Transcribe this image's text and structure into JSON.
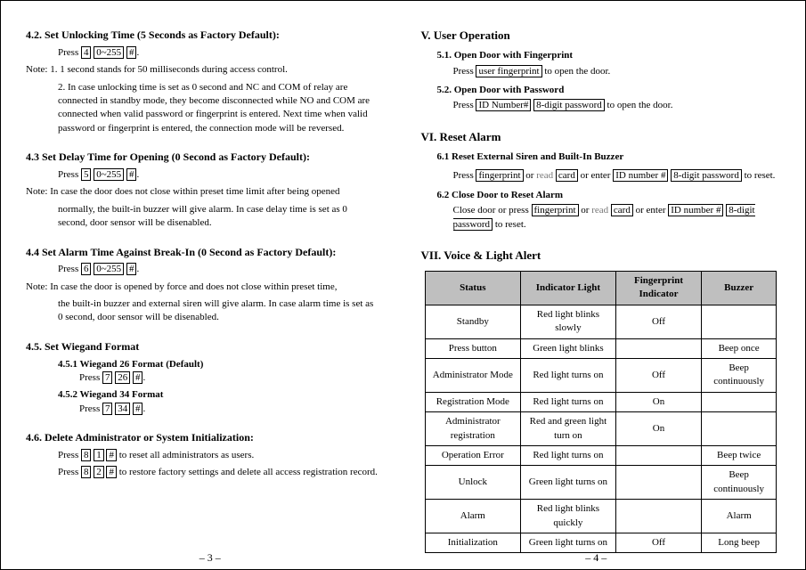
{
  "left": {
    "s42": {
      "heading": "4.2. Set Unlocking Time (5 Seconds as Factory Default):",
      "press_pre": "Press ",
      "k4": "4",
      "range": "0~255",
      "hash": "#",
      "dot": ".",
      "note1": "Note: 1. 1 second stands for 50 milliseconds during access control.",
      "note2": "2. In case unlocking time is set as 0 second and NC and COM of relay are connected in standby mode, they become disconnected while NO and COM are connected when valid password or fingerprint is entered. Next time when valid password or fingerprint is entered, the connection mode will be reversed."
    },
    "s43": {
      "heading": "4.3 Set Delay Time for Opening (0 Second as Factory Default):",
      "k5": "5",
      "note": "Note: In case the door does not close within preset time limit after being opened",
      "note2": "normally, the built-in buzzer will give alarm. In case delay time is set as 0 second, door sensor will be disenabled."
    },
    "s44": {
      "heading": "4.4 Set Alarm Time Against Break-In (0 Second as Factory Default):",
      "k6": "6",
      "note": "Note: In case the door is opened by force and does not close within preset time,",
      "note2": "the built-in buzzer and external siren will give alarm. In case alarm time is set as 0 second, door sensor will be disenabled."
    },
    "s45": {
      "heading": "4.5. Set Wiegand Format",
      "s451_label": "4.5.1 Wiegand 26 Format (Default)",
      "k7": "7",
      "k26": "26",
      "s452_label": "4.5.2 Wiegand 34 Format",
      "k34": "34"
    },
    "s46": {
      "heading": "4.6. Delete Administrator or System Initialization:",
      "k8": "8",
      "k1": "1",
      "txt1": " to reset all administrators as users.",
      "k2": "2",
      "txt2": " to restore factory settings and delete all access registration record."
    },
    "page": "– 3 –"
  },
  "right": {
    "v": {
      "heading": "V. User Operation",
      "s51_h": "5.1. Open Door with Fingerprint",
      "s51_pre": "Press ",
      "s51_box": "user fingerprint",
      "s51_post": " to open the door.",
      "s52_h": "5.2. Open Door with Password",
      "s52_box1": "ID Number#",
      "s52_box2": "8-digit password",
      "s52_post": " to open the door."
    },
    "vi": {
      "heading": "VI. Reset Alarm",
      "s61_h": "6.1 Reset External Siren and Built-In Buzzer",
      "fp": "fingerprint",
      "read": "read",
      "card": "card",
      "or": " or ",
      "enter": " or enter ",
      "idnum": "ID number #",
      "pw": "8-digit password",
      "toreset": " to reset.",
      "s62_h": "6.2 Close Door to Reset Alarm",
      "s62_pre": "Close door or press "
    },
    "vii": {
      "heading": "VII. Voice & Light Alert",
      "columns": [
        "Status",
        "Indicator Light",
        "Fingerprint Indicator",
        "Buzzer"
      ],
      "rows": [
        [
          "Standby",
          "Red light blinks slowly",
          "Off",
          ""
        ],
        [
          "Press button",
          "Green light blinks",
          "",
          "Beep once"
        ],
        [
          "Administrator Mode",
          "Red light turns on",
          "Off",
          "Beep continuously"
        ],
        [
          "Registration Mode",
          "Red light turns on",
          "On",
          ""
        ],
        [
          "Administrator registration",
          "Red and green light turn on",
          "On",
          ""
        ],
        [
          "Operation Error",
          "Red light turns on",
          "",
          "Beep twice"
        ],
        [
          "Unlock",
          "Green light turns on",
          "",
          "Beep continuously"
        ],
        [
          "Alarm",
          "Red light blinks quickly",
          "",
          "Alarm"
        ],
        [
          "Initialization",
          "Green light turns on",
          "Off",
          "Long beep"
        ]
      ]
    },
    "page": "– 4 –"
  }
}
